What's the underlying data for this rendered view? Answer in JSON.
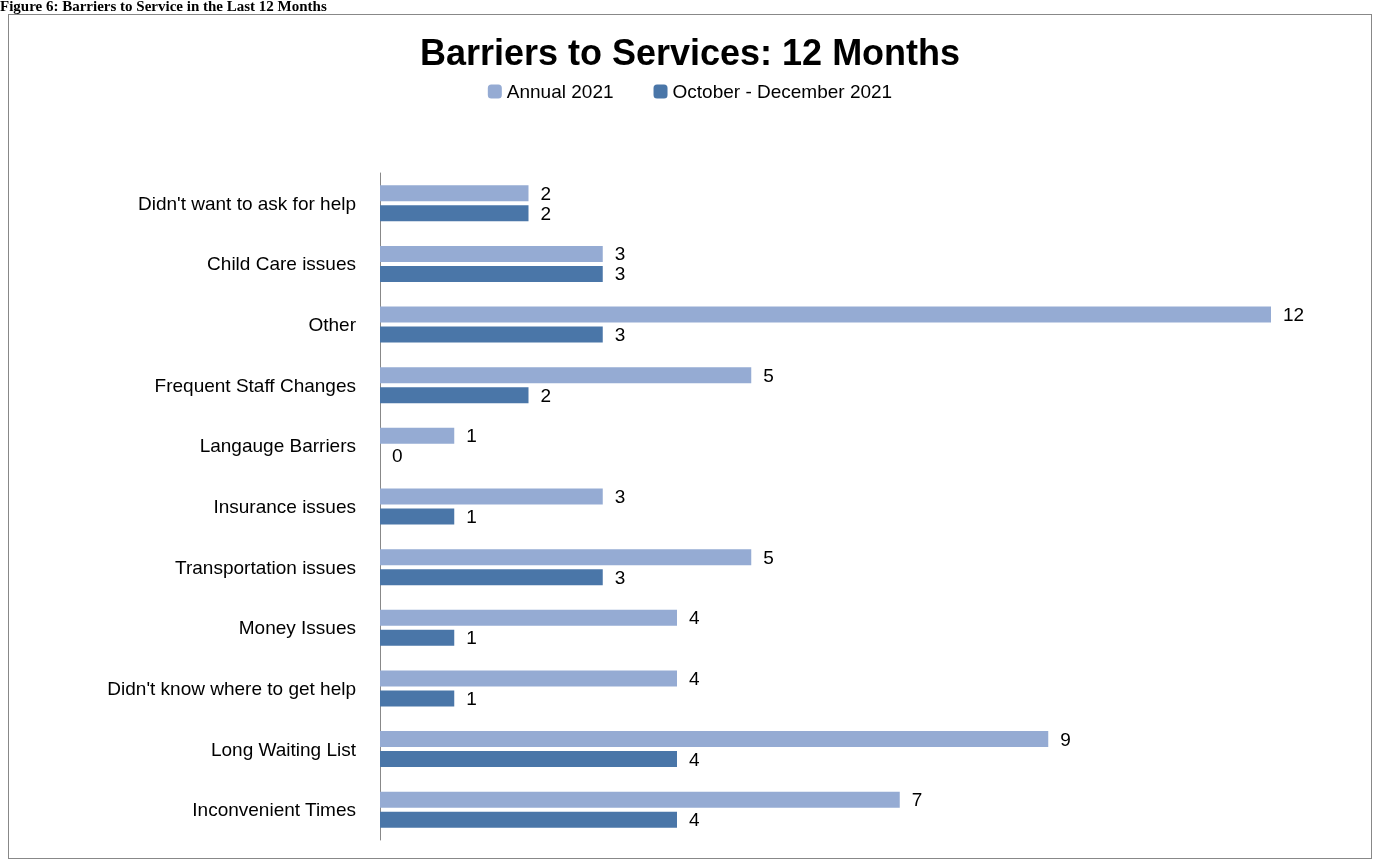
{
  "chart_data": {
    "type": "bar",
    "orientation": "horizontal",
    "title": "Barriers to Services: 12 Months",
    "annotations": [
      "Figure 6: Barriers to Service in the Last 12 Months"
    ],
    "categories": [
      "Didn't want to ask for help",
      "Child Care issues",
      "Other",
      "Frequent Staff Changes",
      "Langauge Barriers",
      "Insurance issues",
      "Transportation issues",
      "Money Issues",
      "Didn't know where to get help",
      "Long Waiting List",
      "Inconvenient Times"
    ],
    "series": [
      {
        "name": "Annual 2021",
        "color": "#95abd3",
        "values": [
          2,
          3,
          12,
          5,
          1,
          3,
          5,
          4,
          4,
          9,
          7
        ]
      },
      {
        "name": "October - December 2021",
        "color": "#4a76a8",
        "values": [
          2,
          3,
          3,
          2,
          0,
          1,
          3,
          1,
          1,
          4,
          4
        ]
      }
    ],
    "tick_labels": "y",
    "data_labels": true,
    "legend": "top",
    "grid": false
  }
}
